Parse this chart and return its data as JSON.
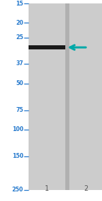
{
  "white_bg": "#ffffff",
  "gel_bg_color": "#c8c8c8",
  "lane_color": "#cccccc",
  "lane_dark_edge": "#b0b0b0",
  "band_color": "#1a1a1a",
  "arrow_color": "#00a8a8",
  "mw_values": [
    250,
    150,
    100,
    75,
    50,
    37,
    25,
    20,
    15
  ],
  "tick_color": "#2277cc",
  "label_color": "#2277cc",
  "lane_label_color": "#555555",
  "band_kda": 29,
  "figsize": [
    1.5,
    2.93
  ],
  "dpi": 100
}
